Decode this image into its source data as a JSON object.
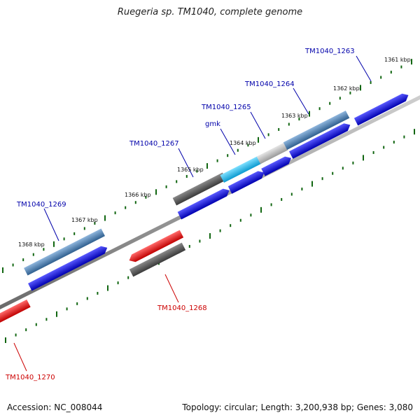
{
  "title": "Ruegeria sp. TM1040, complete genome",
  "footer": {
    "accession": "Accession: NC_008044",
    "summary": "Topology: circular; Length: 3,200,938 bp; Genes: 3,080"
  },
  "colors": {
    "forward_cds": "#0000ee",
    "reverse_cds": "#ee0000",
    "forward_label": "#0000aa",
    "reverse_label": "#cc0000",
    "gene_steelblue": "#4a7fb5",
    "gene_darkgray": "#555555",
    "gene_lightgray": "#bbbbbb",
    "gene_cyan": "#22bbee",
    "backbone": "#888888",
    "tick": "#116611"
  },
  "scale_labels": [
    "1361 kbp",
    "1362 kbp",
    "1363 kbp",
    "1364 kbp",
    "1365 kbp",
    "1366 kbp",
    "1367 kbp",
    "1368 kbp"
  ],
  "gene_labels": {
    "tm1040_1263": "TM1040_1263",
    "tm1040_1264": "TM1040_1264",
    "tm1040_1265": "TM1040_1265",
    "gmk": "gmk",
    "tm1040_1267": "TM1040_1267",
    "tm1040_1269": "TM1040_1269",
    "tm1040_1268": "TM1040_1268",
    "tm1040_1270": "TM1040_1270"
  }
}
